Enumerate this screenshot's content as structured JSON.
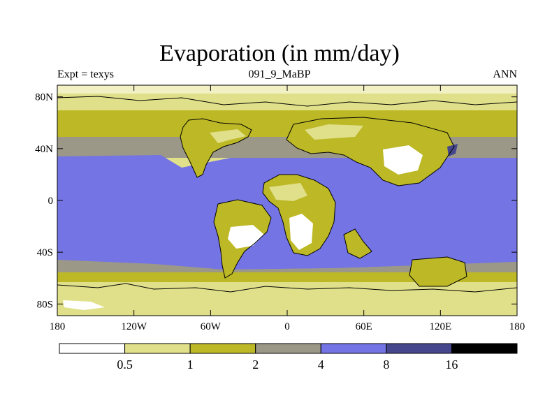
{
  "figure": {
    "title": "Evaporation (in mm/day)",
    "left_string": "Expt = texys",
    "center_string": "091_9_MaBP",
    "right_string": "ANN"
  },
  "map": {
    "lat_ticks": [
      "80N",
      "40N",
      "0",
      "40S",
      "80S"
    ],
    "lon_ticks": [
      "180",
      "120W",
      "60W",
      "0",
      "60E",
      "120E",
      "180"
    ],
    "lat_values": [
      80,
      40,
      0,
      -40,
      -80
    ],
    "lon_values": [
      -180,
      -120,
      -60,
      0,
      60,
      120,
      180
    ]
  },
  "colorbar": {
    "levels": [
      "0.5",
      "1",
      "2",
      "4",
      "8",
      "16"
    ],
    "colors": [
      "#ffffff",
      "#e1e08a",
      "#bcb826",
      "#9b9888",
      "#7474e4",
      "#46468c",
      "#000000"
    ]
  }
}
